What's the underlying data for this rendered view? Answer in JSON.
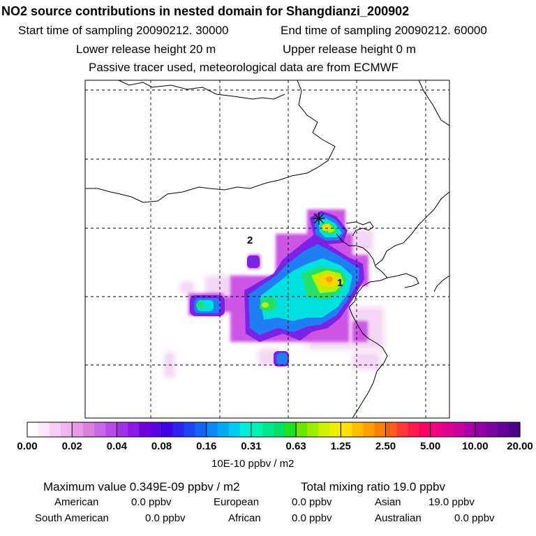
{
  "header": {
    "title": "NO2 source contributions in nested domain for Shangdianzi_200902",
    "start_label": "Start time of sampling 20090212. 30000",
    "end_label": "End time of sampling 20090212. 60000",
    "lower_label": "Lower release height   20 m",
    "upper_label": "Upper release height    0 m",
    "tracer_label": "Passive tracer used, meteorological data are from ECMWF"
  },
  "map": {
    "markers": [
      {
        "label": "1"
      },
      {
        "label": "2"
      }
    ],
    "receptor": "star-marker"
  },
  "colorbar": {
    "ticks": [
      "0.00",
      "0.02",
      "0.04",
      "0.08",
      "0.16",
      "0.31",
      "0.63",
      "1.25",
      "2.50",
      "5.00",
      "10.00",
      "20.00"
    ],
    "unit": "10E-10 ppbv / m2",
    "colors": [
      "#ffffff",
      "#fce6fc",
      "#f6cdf6",
      "#f0b4f0",
      "#e89ae8",
      "#dc7fdc",
      "#cc66e6",
      "#b84ce6",
      "#a033e6",
      "#8c1ae6",
      "#7000d9",
      "#5a00e0",
      "#4400e6",
      "#2e22f0",
      "#1f44f4",
      "#1466f5",
      "#0a88f5",
      "#00aaf5",
      "#00ccf2",
      "#00eedd",
      "#00f2b8",
      "#00e68c",
      "#00e066",
      "#22e022",
      "#66e600",
      "#99ee00",
      "#ccf200",
      "#eef000",
      "#ffe000",
      "#ffbf00",
      "#ff9e00",
      "#ff7d00",
      "#ff5c1a",
      "#ff3a33",
      "#ff1a4d",
      "#ff0066",
      "#f0007e",
      "#e0008f",
      "#c8009e",
      "#ad00a8",
      "#9400a8",
      "#7d00a3",
      "#65009a",
      "#4a008a"
    ]
  },
  "footer": {
    "max_label": "Maximum value  0.349E-09 ppbv / m2",
    "total_label": "Total mixing ratio        19.0 ppbv",
    "american_label": "American",
    "american_val": "0.0 ppbv",
    "european_label": "European",
    "european_val": "0.0 ppbv",
    "asian_label": "Asian",
    "asian_val": "19.0 ppbv",
    "south_american_label": "South American",
    "south_american_val": "0.0 ppbv",
    "african_label": "African",
    "african_val": "0.0 ppbv",
    "australian_label": "Australian",
    "australian_val": "0.0 ppbv"
  }
}
